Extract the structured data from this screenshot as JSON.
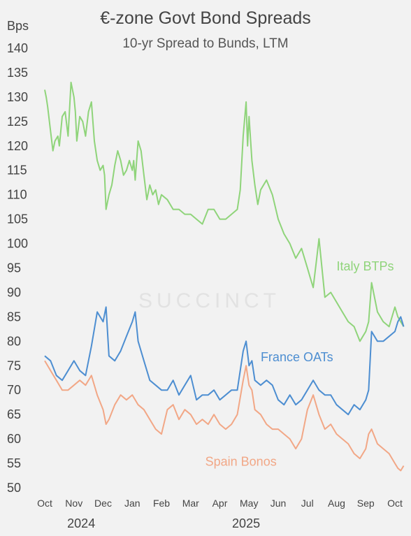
{
  "chart_data": {
    "type": "line",
    "title": "€-zone Govt Bond Spreads",
    "subtitle": "10-yr Spread to Bunds, LTM",
    "ylabel": "Bps",
    "ylim": [
      50,
      140
    ],
    "yticks": [
      50,
      55,
      60,
      65,
      70,
      75,
      80,
      85,
      90,
      95,
      100,
      105,
      110,
      115,
      120,
      125,
      130,
      135,
      140
    ],
    "xticks": [
      "Oct",
      "Nov",
      "Dec",
      "Jan",
      "Feb",
      "Mar",
      "Apr",
      "May",
      "Jun",
      "Jul",
      "Aug",
      "Sep",
      "Oct"
    ],
    "years": [
      "2024",
      "2025"
    ],
    "watermark": "SUCCINCT",
    "series": [
      {
        "name": "Italy BTPs",
        "color": "#8fd47a",
        "x": [
          0,
          0.05,
          0.1,
          0.18,
          0.28,
          0.35,
          0.45,
          0.5,
          0.6,
          0.7,
          0.8,
          0.9,
          1.0,
          1.05,
          1.1,
          1.2,
          1.3,
          1.4,
          1.5,
          1.6,
          1.7,
          1.8,
          1.9,
          2.0,
          2.05,
          2.1,
          2.2,
          2.3,
          2.4,
          2.5,
          2.6,
          2.7,
          2.8,
          2.9,
          3.0,
          3.05,
          3.1,
          3.2,
          3.3,
          3.4,
          3.5,
          3.6,
          3.7,
          3.8,
          3.9,
          4.0,
          4.2,
          4.4,
          4.6,
          4.8,
          5.0,
          5.2,
          5.4,
          5.6,
          5.8,
          6.0,
          6.2,
          6.4,
          6.6,
          6.7,
          6.8,
          6.9,
          6.95,
          7.0,
          7.1,
          7.2,
          7.3,
          7.4,
          7.6,
          7.8,
          8.0,
          8.2,
          8.4,
          8.6,
          8.8,
          9.0,
          9.1,
          9.2,
          9.3,
          9.4,
          9.6,
          9.8,
          10.0,
          10.2,
          10.4,
          10.6,
          10.8,
          11.0,
          11.1,
          11.2,
          11.3,
          11.4,
          11.6,
          11.8,
          12.0,
          12.1,
          12.2,
          12.3
        ],
        "values": [
          131.5,
          130,
          128,
          124,
          119,
          121,
          122,
          120,
          126,
          127,
          122,
          133,
          130,
          127,
          121,
          126,
          125,
          122,
          127,
          129,
          121,
          117,
          115,
          116,
          114,
          107,
          110,
          112,
          116,
          119,
          117,
          114,
          115,
          117,
          115,
          117,
          113,
          121,
          119,
          114,
          109,
          112,
          110,
          111,
          108,
          110,
          109,
          107,
          107,
          106,
          106,
          105,
          104,
          107,
          107,
          105,
          105,
          106,
          107,
          111,
          122,
          129,
          120,
          126,
          117,
          112,
          108,
          111,
          113,
          110,
          105,
          102,
          100,
          97,
          99,
          95,
          93,
          91,
          96,
          101,
          89,
          90,
          88,
          86,
          84,
          83,
          80,
          82,
          84,
          92,
          89,
          86,
          84,
          83,
          87,
          85,
          84,
          83
        ],
        "label": "Italy BTPs"
      },
      {
        "name": "France OATs",
        "color": "#4d8ed1",
        "x": [
          0,
          0.2,
          0.4,
          0.6,
          0.8,
          1.0,
          1.2,
          1.4,
          1.6,
          1.8,
          2.0,
          2.1,
          2.2,
          2.4,
          2.6,
          2.8,
          3.0,
          3.1,
          3.2,
          3.4,
          3.6,
          3.8,
          4.0,
          4.2,
          4.4,
          4.6,
          4.8,
          5.0,
          5.2,
          5.4,
          5.6,
          5.8,
          6.0,
          6.2,
          6.4,
          6.6,
          6.8,
          6.9,
          7.0,
          7.1,
          7.2,
          7.4,
          7.6,
          7.8,
          8.0,
          8.2,
          8.4,
          8.6,
          8.8,
          9.0,
          9.2,
          9.4,
          9.6,
          9.8,
          10.0,
          10.2,
          10.4,
          10.6,
          10.8,
          11.0,
          11.1,
          11.2,
          11.4,
          11.6,
          11.8,
          12.0,
          12.1,
          12.2,
          12.3
        ],
        "values": [
          77,
          76,
          73,
          72,
          74,
          76,
          74,
          73,
          79,
          86,
          84,
          87,
          77,
          76,
          78,
          81,
          84,
          86,
          80,
          76,
          72,
          71,
          70,
          70,
          72,
          69,
          71,
          73,
          68,
          69,
          69,
          70,
          68,
          69,
          70,
          70,
          78,
          80,
          75,
          76,
          72,
          71,
          72,
          71,
          68,
          67,
          69,
          67,
          68,
          70,
          72,
          70,
          69,
          69,
          67,
          66,
          65,
          67,
          66,
          68,
          70,
          82,
          80,
          80,
          81,
          82,
          84,
          85,
          83
        ],
        "label": "France OATs"
      },
      {
        "name": "Spain Bonos",
        "color": "#f2a786",
        "x": [
          0,
          0.2,
          0.4,
          0.6,
          0.8,
          1.0,
          1.2,
          1.4,
          1.6,
          1.8,
          2.0,
          2.1,
          2.2,
          2.4,
          2.6,
          2.8,
          3.0,
          3.2,
          3.4,
          3.6,
          3.8,
          4.0,
          4.2,
          4.4,
          4.6,
          4.8,
          5.0,
          5.2,
          5.4,
          5.6,
          5.8,
          6.0,
          6.2,
          6.4,
          6.6,
          6.8,
          6.9,
          7.0,
          7.1,
          7.2,
          7.4,
          7.6,
          7.8,
          8.0,
          8.2,
          8.4,
          8.6,
          8.8,
          9.0,
          9.2,
          9.4,
          9.6,
          9.8,
          10.0,
          10.2,
          10.4,
          10.6,
          10.8,
          11.0,
          11.1,
          11.2,
          11.4,
          11.6,
          11.8,
          12.0,
          12.1,
          12.2,
          12.3
        ],
        "values": [
          76,
          74,
          72,
          70,
          70,
          71,
          72,
          71,
          73,
          69,
          66,
          63,
          64,
          67,
          69,
          68,
          69,
          67,
          66,
          64,
          62,
          61,
          66,
          67,
          64,
          66,
          65,
          63,
          64,
          63,
          65,
          63,
          62,
          63,
          65,
          72,
          75,
          71,
          70,
          66,
          65,
          63,
          62,
          62,
          61,
          60,
          58,
          60,
          66,
          69,
          65,
          62,
          63,
          61,
          60,
          59,
          57,
          56,
          58,
          61,
          62,
          59,
          58,
          57,
          55,
          54,
          53.5,
          54.5
        ],
        "label": "Spain Bonos"
      }
    ]
  }
}
